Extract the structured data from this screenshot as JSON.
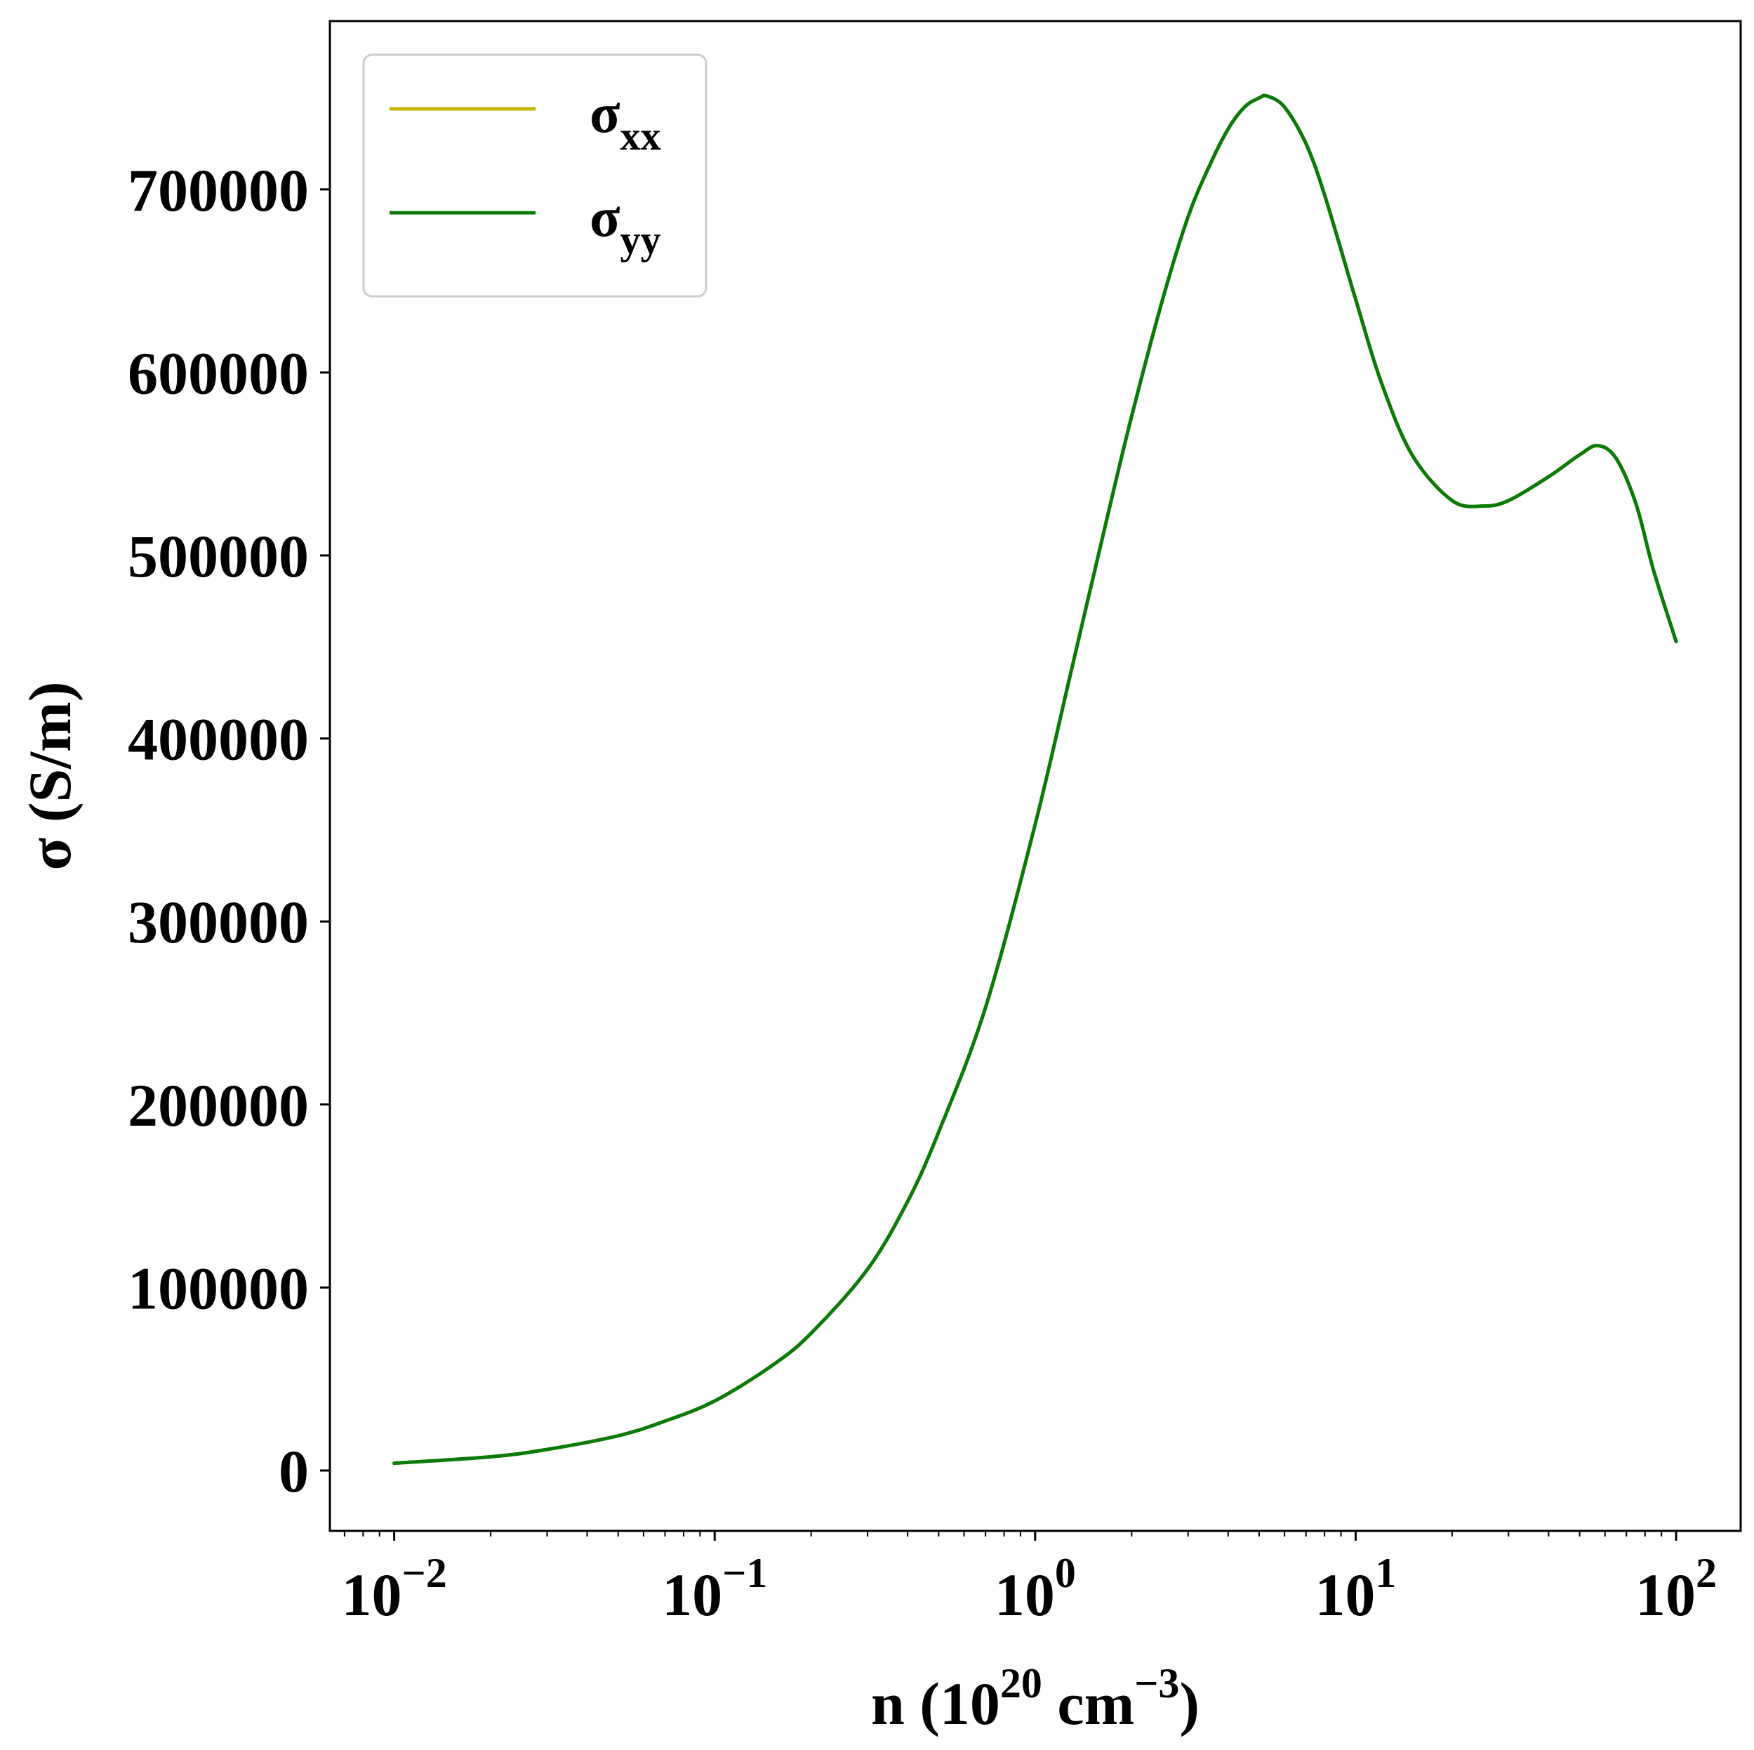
{
  "colors": {
    "sigma_xx": "#c8b400",
    "sigma_yy": "#0a7a0a",
    "axes": "#000000",
    "legend_border": "#cccccc"
  },
  "chart_data": {
    "type": "line",
    "x_scale": "log",
    "xlim": [
      0.0063,
      159
    ],
    "ylim": [
      -33000,
      792000
    ],
    "grid": false,
    "legend_placement": "top-left",
    "xlabel": {
      "main": "n (10",
      "sup1": "20",
      "mid": " cm",
      "sup2": "−3",
      "end": ")"
    },
    "ylabel": "σ (S/m)",
    "x_ticks": [
      {
        "value": 0.01,
        "base": "10",
        "exp": "−2"
      },
      {
        "value": 0.1,
        "base": "10",
        "exp": "−1"
      },
      {
        "value": 1,
        "base": "10",
        "exp": "0"
      },
      {
        "value": 10,
        "base": "10",
        "exp": "1"
      },
      {
        "value": 100,
        "base": "10",
        "exp": "2"
      }
    ],
    "y_ticks": [
      {
        "value": 0,
        "label": "0"
      },
      {
        "value": 100000,
        "label": "100000"
      },
      {
        "value": 200000,
        "label": "200000"
      },
      {
        "value": 300000,
        "label": "300000"
      },
      {
        "value": 400000,
        "label": "400000"
      },
      {
        "value": 500000,
        "label": "500000"
      },
      {
        "value": 600000,
        "label": "600000"
      },
      {
        "value": 700000,
        "label": "700000"
      }
    ],
    "series": [
      {
        "name": "σ",
        "subscript": "xx",
        "color": "#c8b400",
        "x": [
          0.01,
          0.02,
          0.03,
          0.05,
          0.07,
          0.1,
          0.15,
          0.2,
          0.3,
          0.4,
          0.5,
          0.7,
          1.0,
          1.3,
          1.7,
          2.0,
          2.5,
          3.0,
          3.5,
          4.0,
          4.5,
          5.0,
          5.3,
          6.0,
          7.0,
          8.0,
          10.0,
          12.0,
          15.0,
          20.0,
          25.0,
          30.0,
          40.0,
          50.0,
          57.0,
          65.0,
          75.0,
          85.0,
          100.0
        ],
        "y": [
          4000,
          7500,
          11500,
          19000,
          27000,
          38000,
          57000,
          75000,
          110000,
          147000,
          185000,
          253000,
          353000,
          438000,
          525000,
          576000,
          640000,
          685000,
          713000,
          733000,
          745000,
          750000,
          751000,
          745000,
          725000,
          697000,
          640000,
          595000,
          555000,
          530000,
          527000,
          530000,
          543000,
          555000,
          560000,
          553000,
          528000,
          492000,
          453000
        ]
      },
      {
        "name": "σ",
        "subscript": "yy",
        "color": "#0a7a0a",
        "x": [
          0.01,
          0.02,
          0.03,
          0.05,
          0.07,
          0.1,
          0.15,
          0.2,
          0.3,
          0.4,
          0.5,
          0.7,
          1.0,
          1.3,
          1.7,
          2.0,
          2.5,
          3.0,
          3.5,
          4.0,
          4.5,
          5.0,
          5.3,
          6.0,
          7.0,
          8.0,
          10.0,
          12.0,
          15.0,
          20.0,
          25.0,
          30.0,
          40.0,
          50.0,
          57.0,
          65.0,
          75.0,
          85.0,
          100.0
        ],
        "y": [
          4000,
          7500,
          11500,
          19000,
          27000,
          38000,
          57000,
          75000,
          110000,
          147000,
          185000,
          253000,
          353000,
          438000,
          525000,
          576000,
          640000,
          685000,
          713000,
          733000,
          745000,
          750000,
          751000,
          745000,
          725000,
          697000,
          640000,
          595000,
          555000,
          530000,
          527000,
          530000,
          543000,
          555000,
          560000,
          553000,
          528000,
          492000,
          453000
        ]
      }
    ]
  }
}
